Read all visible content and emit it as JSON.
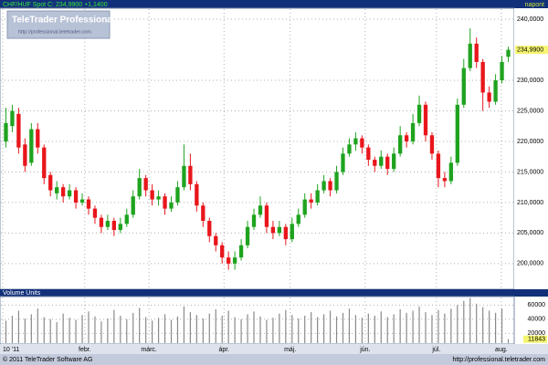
{
  "header": {
    "title": "CHF/HUF Spot C: 234,9900 +1,1400",
    "period": "napont"
  },
  "logo": {
    "name": "TeleTrader Professional",
    "url": "http://professional.teletrader.com"
  },
  "footer": {
    "copyright": "© 2011 TeleTrader Software AG",
    "url": "http://professional.teletrader.com"
  },
  "chart_data": {
    "type": "candlestick",
    "up_color": "#1fa31f",
    "down_color": "#e8161b",
    "grid": true,
    "xlim": [
      0,
      80
    ],
    "xticks": [
      {
        "value": 0,
        "label": "10 '11"
      },
      {
        "value": 12.9,
        "label": "febr."
      },
      {
        "value": 23,
        "label": "márc."
      },
      {
        "value": 34.8,
        "label": "ápr."
      },
      {
        "value": 45.2,
        "label": "máj."
      },
      {
        "value": 57,
        "label": "jún."
      },
      {
        "value": 68.2,
        "label": "júl."
      },
      {
        "value": 78.4,
        "label": "aug."
      }
    ],
    "ylim": [
      195.8,
      241.8
    ],
    "yticks": [
      {
        "value": 200,
        "label": "200,0000"
      },
      {
        "value": 205,
        "label": "205,0000"
      },
      {
        "value": 210,
        "label": "210,0000"
      },
      {
        "value": 215,
        "label": "215,0000"
      },
      {
        "value": 220,
        "label": "220,0000"
      },
      {
        "value": 225,
        "label": "225,0000"
      },
      {
        "value": 230,
        "label": "230,0000"
      },
      {
        "value": 240,
        "label": "240,0000"
      }
    ],
    "last_price": {
      "value": 234.99,
      "label": "234,9900"
    },
    "open": [
      220,
      222.5,
      224.5,
      219.5,
      216.5,
      222,
      219,
      214.5,
      211.5,
      212.5,
      211,
      212,
      210,
      210.5,
      209,
      207.5,
      206,
      207,
      205.5,
      206.5,
      208,
      211,
      214,
      212,
      210.5,
      211,
      209,
      210,
      212.5,
      216,
      213,
      209.5,
      207,
      204.5,
      203,
      201,
      200,
      201,
      203,
      206,
      208,
      209.5,
      206,
      205,
      206,
      204,
      206.5,
      208,
      210.5,
      210,
      212,
      213.5,
      212,
      215,
      218,
      219.5,
      220.5,
      219,
      217,
      216,
      217.5,
      215.5,
      218,
      221,
      220,
      223,
      226,
      221,
      218,
      214,
      213.5,
      216.5,
      226,
      232,
      236,
      233,
      228,
      226.5,
      230,
      233.85
    ],
    "high": [
      225.5,
      226,
      225.5,
      220.5,
      223,
      223,
      219.5,
      215,
      213.5,
      213,
      213,
      212.5,
      211.5,
      211,
      209.5,
      208,
      208,
      207.5,
      207.5,
      209,
      212,
      215.5,
      214.5,
      213,
      212,
      211.5,
      211,
      213.5,
      219.5,
      218,
      213.5,
      210,
      207.5,
      205,
      203.5,
      202,
      202,
      204,
      207,
      209,
      211,
      210,
      207,
      207,
      206.5,
      207.5,
      209,
      211.5,
      211.5,
      213,
      214.5,
      214,
      216,
      219,
      220.5,
      221.5,
      221,
      219.5,
      217.5,
      218.5,
      218,
      219,
      222.5,
      221.5,
      224.5,
      227.5,
      226.5,
      221.5,
      218.5,
      215,
      217.5,
      227,
      233.5,
      238.5,
      237,
      233.5,
      229,
      231,
      234,
      235.5
    ],
    "low": [
      219,
      221.5,
      218,
      215,
      216,
      218,
      213,
      211,
      210.5,
      210,
      210.5,
      209,
      209.5,
      208,
      206.5,
      205,
      205.5,
      204.5,
      205,
      206,
      207.5,
      210.5,
      211,
      209.5,
      209.5,
      208,
      208.5,
      209.5,
      212,
      212,
      208.5,
      206,
      203.5,
      202,
      200,
      199,
      199,
      200.5,
      202.5,
      205.5,
      207.5,
      205,
      204,
      204.5,
      203,
      203.5,
      206,
      207.5,
      209,
      209.5,
      211.5,
      211,
      211.5,
      214.5,
      217.5,
      218.5,
      218,
      216,
      215,
      215.5,
      214.5,
      215,
      217.5,
      219,
      219.5,
      222.5,
      220,
      217,
      212.5,
      212.5,
      213,
      216,
      225.5,
      231.5,
      232,
      225,
      225.5,
      226,
      229.5,
      233
    ],
    "close": [
      223,
      225,
      219,
      216,
      222,
      219,
      214,
      212,
      212.5,
      211,
      212,
      210,
      210.5,
      209,
      207.5,
      206,
      207,
      205.5,
      206.5,
      208,
      211,
      214,
      212,
      210.5,
      211,
      209,
      210,
      212.5,
      216,
      213,
      209.5,
      207,
      204.5,
      203,
      201,
      200,
      201,
      203,
      206,
      208,
      209.5,
      206,
      205,
      206,
      204,
      206.5,
      208,
      210.5,
      210,
      212,
      213.5,
      212,
      215,
      218,
      219.5,
      220.5,
      219,
      217,
      216,
      217.5,
      215.5,
      218,
      221,
      220,
      223,
      226,
      221,
      218,
      214,
      213.5,
      216.5,
      226,
      232,
      236,
      233,
      228,
      226.5,
      230,
      233,
      234.99
    ],
    "volume_title": "Volume Units",
    "volume_color": "#8a8a8a",
    "volume_ylim": [
      5000,
      72000
    ],
    "volume_ticks": [
      20000,
      40000,
      60000
    ],
    "last_volume": 11843,
    "volume": [
      38000,
      45000,
      52000,
      41000,
      47000,
      55000,
      43000,
      40000,
      36000,
      48000,
      42000,
      39000,
      46000,
      51000,
      44000,
      37000,
      41000,
      53000,
      45000,
      40000,
      49000,
      56000,
      43000,
      38000,
      42000,
      47000,
      39000,
      44000,
      58000,
      50000,
      46000,
      41000,
      48000,
      54000,
      45000,
      52000,
      43000,
      40000,
      47000,
      51000,
      44000,
      39000,
      42000,
      48000,
      53000,
      46000,
      41000,
      45000,
      50000,
      43000,
      47000,
      52000,
      44000,
      49000,
      55000,
      46000,
      42000,
      48000,
      45000,
      51000,
      43000,
      47000,
      54000,
      49000,
      52000,
      58000,
      50000,
      46000,
      53000,
      48000,
      55000,
      60000,
      66000,
      70000,
      62000,
      57000,
      52000,
      49000,
      55000,
      11843
    ]
  }
}
